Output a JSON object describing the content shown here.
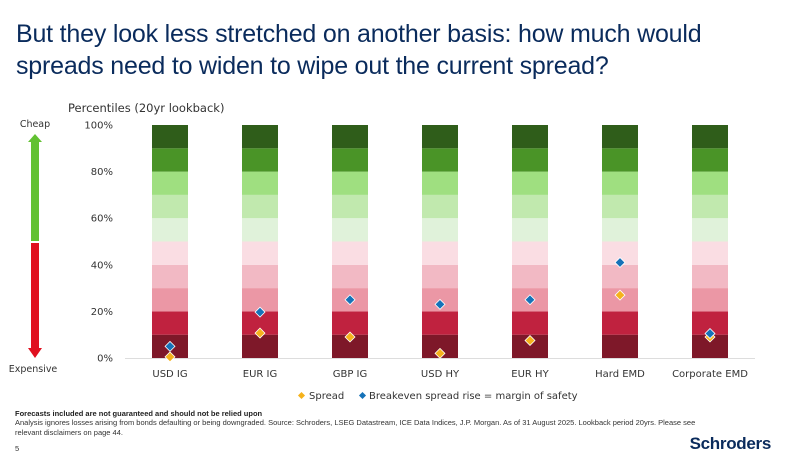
{
  "title": "But they look less stretched on another basis: how much would spreads need to widen to wipe out the current spread?",
  "chart_data": {
    "type": "scatter",
    "subtitle": "Percentiles (20yr lookback)",
    "categories": [
      "USD IG",
      "EUR IG",
      "GBP IG",
      "USD HY",
      "EUR HY",
      "Hard EMD",
      "Corporate EMD"
    ],
    "ylim": [
      0,
      100
    ],
    "yticks": [
      0,
      20,
      40,
      60,
      80,
      100
    ],
    "ytick_labels": [
      "0%",
      "20%",
      "40%",
      "60%",
      "80%",
      "100%"
    ],
    "band_colors": [
      "#7e1829",
      "#c0223f",
      "#eb97a5",
      "#f2b9c4",
      "#fadde3",
      "#e0f2da",
      "#c1e9ae",
      "#9fdf80",
      "#4a9427",
      "#2f5d1a"
    ],
    "series": [
      {
        "name": "Spread",
        "color": "#f5b21c",
        "values": [
          0.5,
          10.7,
          9,
          2,
          7.5,
          27,
          9
        ]
      },
      {
        "name": "Breakeven spread rise = margin of safety",
        "color": "#1672b8",
        "values": [
          5,
          19.7,
          25,
          23,
          25,
          41,
          10.5
        ]
      }
    ],
    "legend_position": "bottom",
    "scale_labels": {
      "top": "Cheap",
      "bottom": "Expensive"
    }
  },
  "footer": {
    "disclaimer": "Forecasts included are not guaranteed and should not be relied upon",
    "note": "Analysis ignores losses arising from bonds defaulting or being downgraded. Source: Schroders, LSEG Datastream, ICE Data Indices, J.P. Morgan. As of 31 August 2025. Lookback period 20yrs. Please see relevant disclaimers on page 44.",
    "page": "5",
    "brand": "Schroders"
  }
}
